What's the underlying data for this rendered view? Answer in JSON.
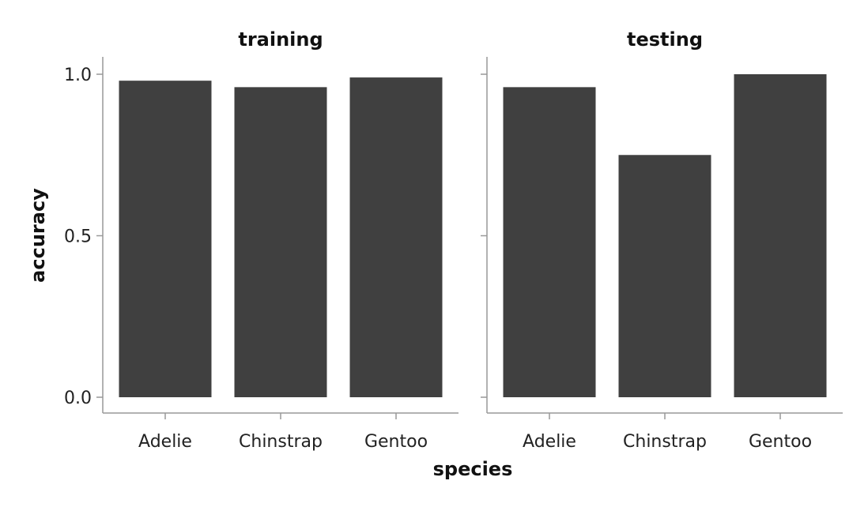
{
  "chart_data": {
    "type": "bar",
    "xlabel": "species",
    "ylabel": "accuracy",
    "ylim": [
      0,
      1.05
    ],
    "yticks": [
      0.0,
      0.5,
      1.0
    ],
    "ytick_labels": [
      "0.0",
      "0.5",
      "1.0"
    ],
    "bar_color": "#404040",
    "grid": false,
    "panels": [
      {
        "title": "training",
        "categories": [
          "Adelie",
          "Chinstrap",
          "Gentoo"
        ],
        "values": [
          0.98,
          0.96,
          0.99
        ]
      },
      {
        "title": "testing",
        "categories": [
          "Adelie",
          "Chinstrap",
          "Gentoo"
        ],
        "values": [
          0.96,
          0.75,
          1.0
        ]
      }
    ]
  }
}
